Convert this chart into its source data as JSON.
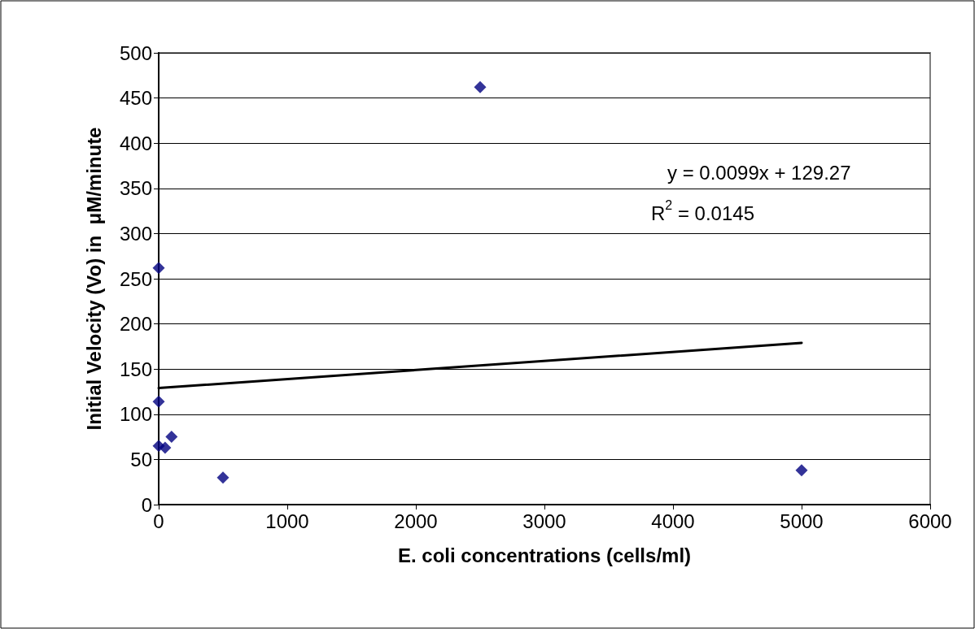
{
  "chart_data": {
    "type": "scatter",
    "xlabel": "E. coli concentrations (cells/ml)",
    "ylabel": "Initial Velocity (Vo) in  μM/minute",
    "series": [
      {
        "color": "#000080",
        "x": [
          0,
          0,
          0,
          50,
          100,
          500,
          2500,
          5000
        ],
        "values": [
          262,
          114,
          65,
          63,
          75,
          30,
          462,
          38
        ]
      },
      {
        "type": "line",
        "color": "#000000",
        "x": [
          0,
          5000
        ],
        "values": [
          129,
          179
        ],
        "line_style": "solid",
        "marker": "none"
      }
    ],
    "marker": "diamond",
    "xlim": [
      0,
      6000
    ],
    "xticks": [
      0,
      1000,
      2000,
      3000,
      4000,
      5000,
      6000
    ],
    "ylim": [
      0,
      500
    ],
    "yticks": [
      0,
      50,
      100,
      150,
      200,
      250,
      300,
      350,
      400,
      450,
      500
    ],
    "grid": "y",
    "annotations": [
      "y = 0.0099x + 129.27",
      "R$^{2}$ = 0.0145"
    ]
  }
}
